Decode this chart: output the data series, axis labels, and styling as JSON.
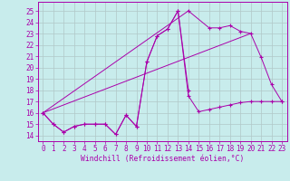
{
  "xlabel": "Windchill (Refroidissement éolien,°C)",
  "bg_color": "#c8ecec",
  "grid_color": "#b0c8c8",
  "line_color": "#aa00aa",
  "xlim": [
    -0.5,
    23.5
  ],
  "ylim": [
    13.5,
    25.8
  ],
  "xticks": [
    0,
    1,
    2,
    3,
    4,
    5,
    6,
    7,
    8,
    9,
    10,
    11,
    12,
    13,
    14,
    15,
    16,
    17,
    18,
    19,
    20,
    21,
    22,
    23
  ],
  "yticks": [
    14,
    15,
    16,
    17,
    18,
    19,
    20,
    21,
    22,
    23,
    24,
    25
  ],
  "s1_x": [
    0,
    1,
    2,
    3,
    4,
    5,
    6,
    7,
    8,
    9,
    10,
    11,
    12,
    13,
    14
  ],
  "s1_y": [
    16.0,
    15.0,
    14.3,
    14.8,
    15.0,
    15.0,
    15.0,
    14.1,
    15.8,
    14.8,
    20.5,
    22.8,
    23.4,
    25.0,
    18.0
  ],
  "s2_x": [
    0,
    1,
    2,
    3,
    4,
    5,
    6,
    7,
    8,
    9,
    10,
    11,
    12,
    13,
    14,
    15,
    16,
    17,
    18,
    19,
    20,
    21,
    22,
    23
  ],
  "s2_y": [
    16.0,
    15.0,
    14.3,
    14.8,
    15.0,
    15.0,
    15.0,
    14.1,
    15.8,
    14.8,
    20.5,
    22.8,
    23.4,
    25.0,
    17.5,
    16.1,
    16.3,
    16.5,
    16.7,
    16.9,
    17.0,
    17.0,
    17.0,
    17.0
  ],
  "s3_x": [
    14,
    16,
    17,
    18,
    19,
    20,
    21,
    22,
    23
  ],
  "s3_y": [
    25.0,
    23.5,
    23.5,
    23.7,
    23.2,
    23.0,
    20.9,
    18.5,
    17.0
  ],
  "line1_x": [
    0,
    14
  ],
  "line1_y": [
    16.0,
    25.0
  ],
  "line2_x": [
    0,
    20
  ],
  "line2_y": [
    16.0,
    23.0
  ],
  "tick_fontsize": 5.5,
  "xlabel_fontsize": 5.8
}
